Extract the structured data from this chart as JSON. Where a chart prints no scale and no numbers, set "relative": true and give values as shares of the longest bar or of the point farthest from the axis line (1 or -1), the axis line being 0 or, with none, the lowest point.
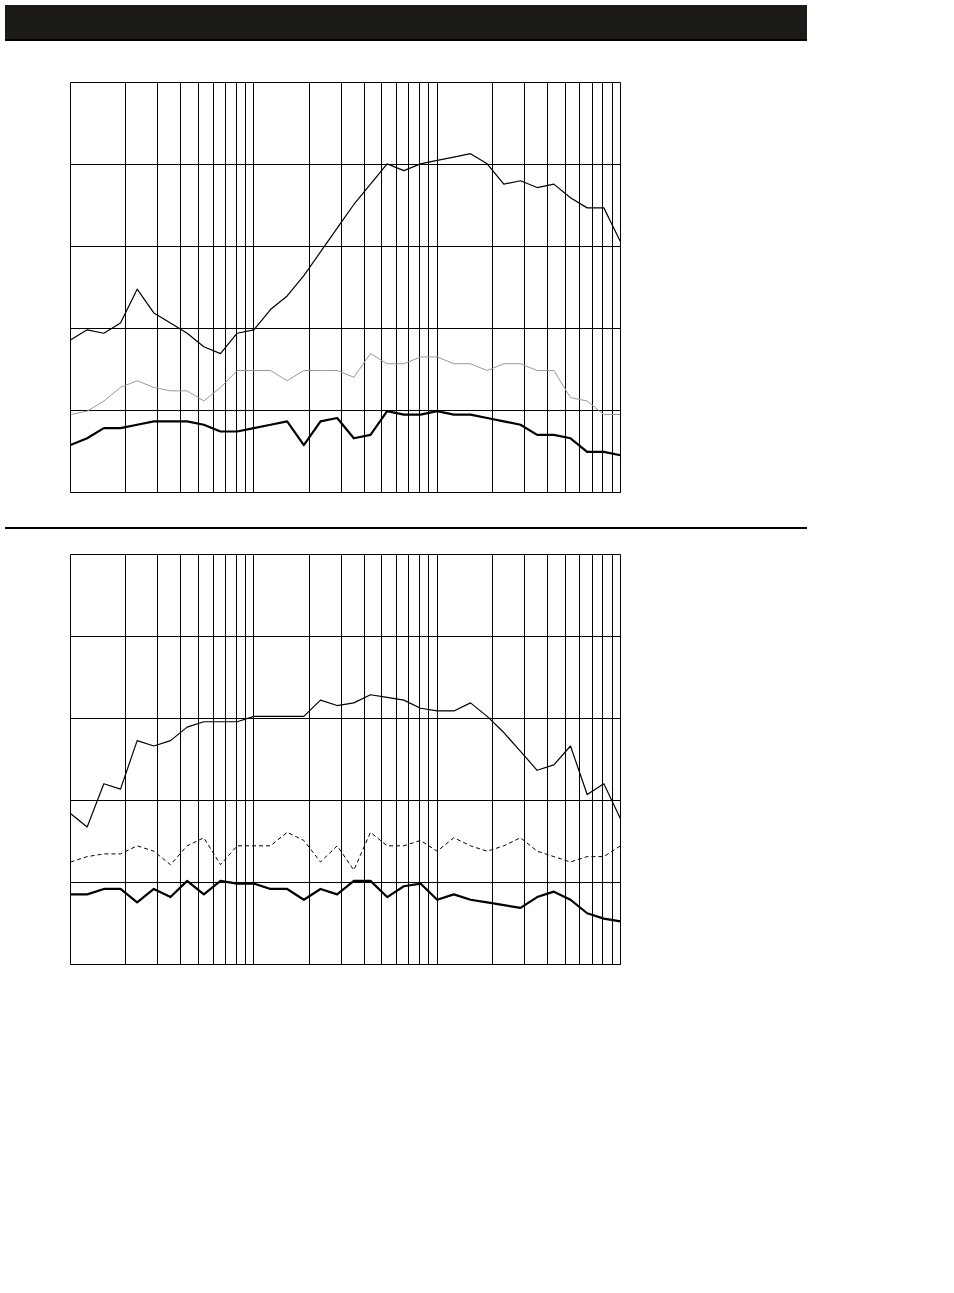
{
  "chart_data": [
    {
      "type": "line",
      "relative": true,
      "grid": true,
      "categories": [
        null,
        null,
        null,
        null,
        null,
        null,
        null,
        null,
        null,
        null,
        null,
        null,
        null,
        null,
        null,
        null,
        null,
        null,
        null,
        null,
        null,
        null,
        null,
        null,
        null,
        null,
        null,
        null,
        null,
        null,
        null,
        null,
        null,
        null
      ],
      "series": [
        {
          "color": "#000000",
          "line_style": "solid",
          "values": [
            0.45,
            0.48,
            0.47,
            0.5,
            0.6,
            0.53,
            0.5,
            0.47,
            0.43,
            0.41,
            0.47,
            0.48,
            0.54,
            0.58,
            0.64,
            0.71,
            0.78,
            0.85,
            0.91,
            0.97,
            0.95,
            0.97,
            0.98,
            0.99,
            1.0,
            0.97,
            0.91,
            0.92,
            0.9,
            0.91,
            0.87,
            0.84,
            0.84,
            0.74
          ]
        },
        {
          "color": "#999999",
          "line_style": "solid",
          "values": [
            0.23,
            0.24,
            0.27,
            0.31,
            0.33,
            0.31,
            0.3,
            0.3,
            0.27,
            0.31,
            0.36,
            0.36,
            0.36,
            0.33,
            0.36,
            0.36,
            0.36,
            0.34,
            0.41,
            0.38,
            0.38,
            0.4,
            0.4,
            0.38,
            0.38,
            0.36,
            0.38,
            0.38,
            0.36,
            0.36,
            0.28,
            0.27,
            0.23,
            0.23
          ]
        },
        {
          "color": "#000000",
          "line_style": "solid",
          "values": [
            0.14,
            0.16,
            0.19,
            0.19,
            0.2,
            0.21,
            0.21,
            0.21,
            0.2,
            0.18,
            0.18,
            0.19,
            0.2,
            0.21,
            0.14,
            0.21,
            0.22,
            0.16,
            0.17,
            0.24,
            0.23,
            0.23,
            0.24,
            0.23,
            0.23,
            0.22,
            0.21,
            0.2,
            0.17,
            0.17,
            0.16,
            0.12,
            0.12,
            0.11
          ]
        }
      ]
    },
    {
      "type": "line",
      "relative": true,
      "grid": true,
      "categories": [
        null,
        null,
        null,
        null,
        null,
        null,
        null,
        null,
        null,
        null,
        null,
        null,
        null,
        null,
        null,
        null,
        null,
        null,
        null,
        null,
        null,
        null,
        null,
        null,
        null,
        null,
        null,
        null,
        null,
        null,
        null,
        null,
        null,
        null
      ],
      "series": [
        {
          "color": "#000000",
          "line_style": "solid",
          "values": [
            0.56,
            0.51,
            0.67,
            0.65,
            0.83,
            0.81,
            0.83,
            0.88,
            0.9,
            0.9,
            0.9,
            0.92,
            0.92,
            0.92,
            0.92,
            0.98,
            0.96,
            0.97,
            1.0,
            0.99,
            0.98,
            0.95,
            0.94,
            0.94,
            0.97,
            0.92,
            0.86,
            0.79,
            0.72,
            0.74,
            0.81,
            0.63,
            0.67,
            0.54
          ]
        },
        {
          "color": "#000000",
          "line_style": "dashed",
          "values": [
            0.38,
            0.4,
            0.41,
            0.41,
            0.44,
            0.42,
            0.37,
            0.44,
            0.47,
            0.37,
            0.44,
            0.44,
            0.44,
            0.49,
            0.46,
            0.38,
            0.44,
            0.35,
            0.49,
            0.44,
            0.44,
            0.46,
            0.42,
            0.47,
            0.44,
            0.42,
            0.44,
            0.47,
            0.42,
            0.4,
            0.38,
            0.4,
            0.4,
            0.44
          ]
        },
        {
          "color": "#000000",
          "line_style": "solid",
          "values": [
            0.26,
            0.26,
            0.28,
            0.28,
            0.23,
            0.28,
            0.25,
            0.31,
            0.26,
            0.31,
            0.3,
            0.3,
            0.28,
            0.28,
            0.24,
            0.28,
            0.26,
            0.31,
            0.31,
            0.25,
            0.29,
            0.3,
            0.24,
            0.26,
            0.24,
            0.23,
            0.22,
            0.21,
            0.25,
            0.27,
            0.24,
            0.19,
            0.17,
            0.16
          ]
        }
      ]
    }
  ]
}
